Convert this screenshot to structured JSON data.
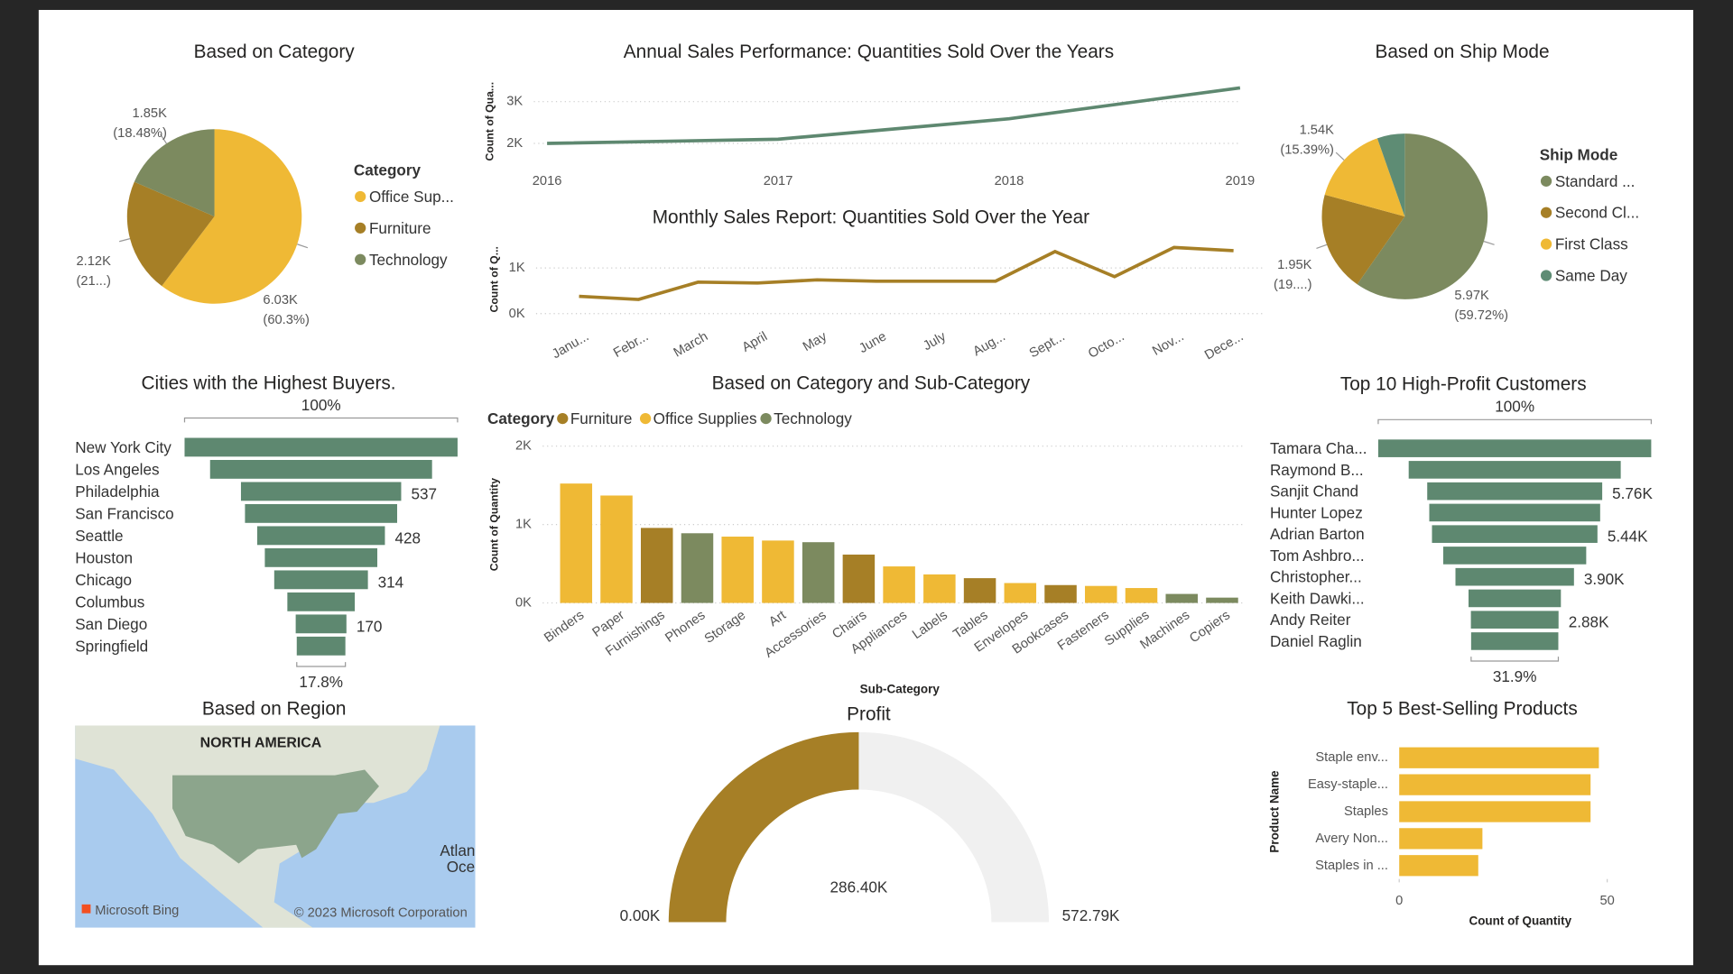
{
  "chart_data": [
    {
      "type": "pie",
      "title": "Based on Category",
      "legend_title": "Category",
      "categories": [
        "Office Sup...",
        "Furniture",
        "Technology"
      ],
      "values": [
        6030,
        2120,
        1850
      ],
      "value_labels": [
        "6.03K",
        "2.12K",
        "1.85K"
      ],
      "percent_labels": [
        "(60.3%)",
        "(21...)",
        "(18.48%)"
      ],
      "colors": [
        "#EFB935",
        "#A67F26",
        "#7C8A5F"
      ]
    },
    {
      "type": "line",
      "title": "Annual Sales Performance: Quantities Sold Over the Years",
      "y_label": "Count of Qua...",
      "x": [
        2016,
        2017,
        2018,
        2019
      ],
      "values": [
        2000,
        2100,
        2590,
        3330
      ],
      "color": "#5E8870",
      "xlim": [
        2016,
        2019
      ],
      "xticks": [
        2016,
        2017,
        2018,
        2019
      ],
      "ylim": [
        1600,
        3450
      ],
      "yticks": [
        {
          "value": 2000,
          "label": "2K"
        },
        {
          "value": 3000,
          "label": "3K"
        }
      ],
      "grid": true
    },
    {
      "type": "line",
      "title": "Monthly Sales Report: Quantities Sold Over the Year",
      "y_label": "Count of Q...",
      "categories": [
        "Janu...",
        "Febr...",
        "March",
        "April",
        "May",
        "June",
        "July",
        "Aug...",
        "Sept...",
        "Octo...",
        "Nov...",
        "Dece..."
      ],
      "values": [
        380,
        310,
        690,
        670,
        740,
        710,
        710,
        710,
        1360,
        810,
        1450,
        1380
      ],
      "color": "#A67F26",
      "ylim": [
        0,
        1500
      ],
      "yticks": [
        {
          "value": 0,
          "label": "0K"
        },
        {
          "value": 1000,
          "label": "1K"
        }
      ],
      "grid": true
    },
    {
      "type": "pie",
      "title": "Based on Ship Mode",
      "legend_title": "Ship Mode",
      "categories": [
        "Standard ...",
        "Second Cl...",
        "First Class",
        "Same Day"
      ],
      "values": [
        5970,
        1950,
        1540,
        537
      ],
      "value_labels": [
        "5.97K",
        "1.95K",
        "1.54K",
        null
      ],
      "percent_labels": [
        "(59.72%)",
        "(19....)",
        "(15.39%)",
        null
      ],
      "colors": [
        "#7C8A5F",
        "#A67F26",
        "#EFB935",
        "#5E8C74"
      ]
    },
    {
      "type": "funnel",
      "title": "Cities with the Highest Buyers.",
      "categories": [
        "New York City",
        "Los Angeles",
        "Philadelphia",
        "San Francisco",
        "Seattle",
        "Houston",
        "Chicago",
        "Columbus",
        "San Diego",
        "Springfield"
      ],
      "values": [
        915,
        744,
        537,
        510,
        428,
        377,
        314,
        226,
        170,
        163
      ],
      "value_labels": [
        null,
        null,
        "537",
        null,
        "428",
        null,
        "314",
        null,
        "170",
        null
      ],
      "top_label": "100%",
      "bottom_label": "17.8%",
      "color": "#5E8870"
    },
    {
      "type": "bar",
      "title": "Based on Category and Sub-Category",
      "legend_title": "Category",
      "x_label": "Sub-Category",
      "y_label": "Count of Quantity",
      "categories": [
        "Binders",
        "Paper",
        "Furnishings",
        "Phones",
        "Storage",
        "Art",
        "Accessories",
        "Chairs",
        "Appliances",
        "Labels",
        "Tables",
        "Envelopes",
        "Bookcases",
        "Fasteners",
        "Supplies",
        "Machines",
        "Copiers"
      ],
      "series": [
        {
          "name": "Furniture",
          "color": "#A67F26",
          "values": [
            null,
            null,
            957,
            null,
            null,
            null,
            null,
            617,
            null,
            null,
            316,
            null,
            228,
            null,
            null,
            null,
            null
          ]
        },
        {
          "name": "Office Supplies",
          "color": "#EFB935",
          "values": [
            1523,
            1370,
            null,
            null,
            846,
            796,
            null,
            null,
            466,
            364,
            null,
            254,
            null,
            217,
            190,
            null,
            null
          ]
        },
        {
          "name": "Technology",
          "color": "#7C8A5F",
          "values": [
            null,
            null,
            null,
            889,
            null,
            null,
            775,
            null,
            null,
            null,
            null,
            null,
            null,
            null,
            null,
            115,
            68
          ]
        }
      ],
      "ylim": [
        0,
        2000
      ],
      "yticks": [
        {
          "value": 0,
          "label": "0K"
        },
        {
          "value": 1000,
          "label": "1K"
        },
        {
          "value": 2000,
          "label": "2K"
        }
      ],
      "grid": true
    },
    {
      "type": "funnel",
      "title": "Top 10 High-Profit Customers",
      "categories": [
        "Tamara Cha...",
        "Raymond B...",
        "Sanjit Chand",
        "Hunter Lopez",
        "Adrian Barton",
        "Tom Ashbro...",
        "Christopher...",
        "Keith Dawki...",
        "Andy Reiter",
        "Daniel Raglin"
      ],
      "values": [
        8981,
        6976,
        5757,
        5622,
        5444,
        4704,
        3899,
        3038,
        2884,
        2869
      ],
      "value_labels": [
        null,
        null,
        "5.76K",
        null,
        "5.44K",
        null,
        "3.90K",
        null,
        "2.88K",
        null
      ],
      "top_label": "100%",
      "bottom_label": "31.9%",
      "color": "#5E8870"
    },
    {
      "type": "map",
      "title": "Based on Region",
      "labels": [
        "NORTH AMERICA",
        "Atlan",
        "Oce",
        "Microsoft Bing",
        "© 2023 Microsoft Corporation"
      ]
    },
    {
      "type": "gauge",
      "title": "Profit",
      "value": 286400,
      "value_label": "286.40K",
      "ylim": [
        0,
        572790
      ],
      "ylim_labels": [
        "0.00K",
        "572.79K"
      ],
      "color": "#A67F26"
    },
    {
      "type": "bar",
      "horizontal": true,
      "title": "Top 5 Best-Selling Products",
      "categories": [
        "Staple env...",
        "Easy-staple...",
        "Staples",
        "Avery Non...",
        "Staples in ..."
      ],
      "values": [
        48,
        46,
        46,
        20,
        19
      ],
      "color": "#EFB935",
      "xlim": [
        0,
        55
      ],
      "xticks": [
        0,
        50
      ],
      "x_label": "Count of Quantity",
      "y_label": "Product Name"
    }
  ]
}
